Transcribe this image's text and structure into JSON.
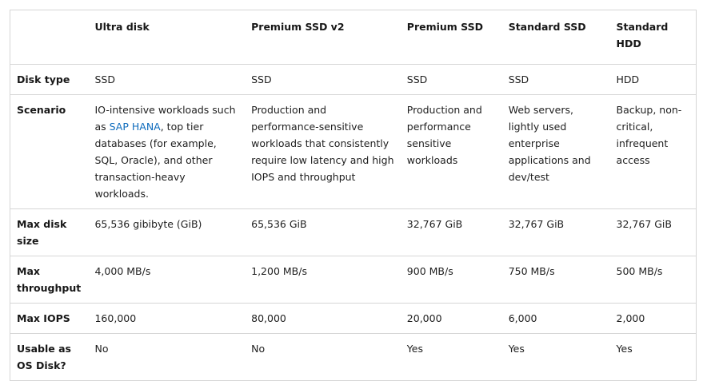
{
  "table": {
    "headers": [
      "",
      "Ultra disk",
      "Premium SSD v2",
      "Premium SSD",
      "Standard SSD",
      "Standard HDD"
    ],
    "rows": [
      {
        "label": "Disk type",
        "cells": [
          "SSD",
          "SSD",
          "SSD",
          "SSD",
          "HDD"
        ]
      },
      {
        "label": "Scenario",
        "cells": [
          {
            "pre": "IO-intensive workloads such as ",
            "link": "SAP HANA",
            "post": ", top tier databases (for example, SQL, Oracle), and other transaction-heavy workloads."
          },
          "Production and performance-sensitive workloads that consistently require low latency and high IOPS and throughput",
          "Production and performance sensitive workloads",
          "Web servers, lightly used enterprise applications and dev/test",
          "Backup, non-critical, infrequent access"
        ]
      },
      {
        "label": "Max disk size",
        "cells": [
          "65,536 gibibyte (GiB)",
          "65,536 GiB",
          "32,767 GiB",
          "32,767 GiB",
          "32,767 GiB"
        ]
      },
      {
        "label": "Max throughput",
        "cells": [
          "4,000 MB/s",
          "1,200 MB/s",
          "900 MB/s",
          "750 MB/s",
          "500 MB/s"
        ]
      },
      {
        "label": "Max IOPS",
        "cells": [
          "160,000",
          "80,000",
          "20,000",
          "6,000",
          "2,000"
        ]
      },
      {
        "label": "Usable as OS Disk?",
        "cells": [
          "No",
          "No",
          "Yes",
          "Yes",
          "Yes"
        ]
      }
    ]
  },
  "colors": {
    "link": "#0f6cbd",
    "border": "#d6d6d6",
    "text": "#171717"
  }
}
